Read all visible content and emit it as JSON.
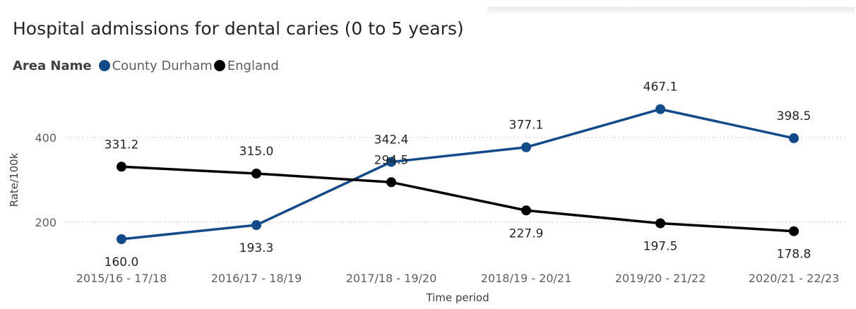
{
  "title": "Hospital admissions for dental caries (0 to 5 years)",
  "legend": {
    "title": "Area Name",
    "items": [
      {
        "label": "County Durham",
        "color": "#124A8A"
      },
      {
        "label": "England",
        "color": "#000000"
      }
    ]
  },
  "chart_data": {
    "type": "line",
    "title": "Hospital admissions for dental caries (0 to 5 years)",
    "xlabel": "Time period",
    "ylabel": "Rate/100k",
    "categories": [
      "2015/16 - 17/18",
      "2016/17 - 18/19",
      "2017/18 - 19/20",
      "2018/19 - 20/21",
      "2019/20 - 21/22",
      "2020/21 - 22/23"
    ],
    "y_ticks": [
      200,
      400
    ],
    "ylim": [
      160,
      480
    ],
    "grid": true,
    "legend_position": "top-left",
    "series": [
      {
        "name": "County Durham",
        "color": "#124A8A",
        "values": [
          160.0,
          193.3,
          342.4,
          377.1,
          467.1,
          398.5
        ],
        "labels": [
          "160.0",
          "193.3",
          "342.4",
          "377.1",
          "467.1",
          "398.5"
        ]
      },
      {
        "name": "England",
        "color": "#000000",
        "values": [
          331.2,
          315.0,
          294.5,
          227.9,
          197.5,
          178.8
        ],
        "labels": [
          "331.2",
          "315.0",
          "294.5",
          "227.9",
          "197.5",
          "178.8"
        ]
      }
    ]
  }
}
